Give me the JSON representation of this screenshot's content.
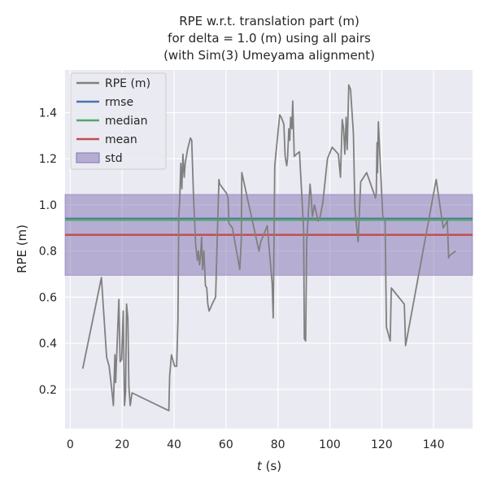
{
  "chart_data": {
    "type": "line",
    "title_lines": [
      "RPE w.r.t. translation part (m)",
      "for delta = 1.0 (m) using all pairs",
      "(with Sim(3) Umeyama alignment)"
    ],
    "xlabel_var": "t",
    "xlabel_unit": " (s)",
    "ylabel": "RPE (m)",
    "xlim": [
      -2,
      155
    ],
    "ylim": [
      0.03,
      1.585
    ],
    "xticks": [
      0,
      20,
      40,
      60,
      80,
      100,
      120,
      140
    ],
    "yticks": [
      0.2,
      0.4,
      0.6,
      0.8,
      1.0,
      1.2,
      1.4
    ],
    "ytick_labels": [
      "0.2",
      "0.4",
      "0.6",
      "0.8",
      "1.0",
      "1.2",
      "1.4"
    ],
    "grid": true,
    "legend_position": "top-left",
    "series": [
      {
        "name": "RPE (m)",
        "color": "#808080",
        "x": [
          4.8,
          12,
          14,
          15,
          16,
          16.6,
          17.2,
          17.5,
          18.2,
          18.7,
          19.2,
          19.8,
          20.4,
          20.9,
          21.3,
          21.7,
          22.2,
          22.6,
          23.1,
          23.8,
          38,
          38.3,
          39,
          40.2,
          41,
          41.5,
          41.8,
          42.2,
          42.6,
          43,
          43.4,
          43.9,
          44.3,
          45.2,
          46.3,
          46.8,
          47.5,
          48.3,
          49,
          49.4,
          49.8,
          50.2,
          50.6,
          51,
          51.5,
          52.1,
          52.6,
          53,
          53.5,
          55.1,
          56,
          56.7,
          57.3,
          57.6,
          60.2,
          60.8,
          61.1,
          62.5,
          65.3,
          65.9,
          66.1,
          72.7,
          73.4,
          75.9,
          77.8,
          78.2,
          78.8,
          80.7,
          81.3,
          82.3,
          82.8,
          83.4,
          83.7,
          84.2,
          84.6,
          84.9,
          85.4,
          85.7,
          86.3,
          87.2,
          88.3,
          89.5,
          89.9,
          90.2,
          90.7,
          91.1,
          92.4,
          92.8,
          93.3,
          94.1,
          95.5,
          96.3,
          97.3,
          99.1,
          100.9,
          103.3,
          104.1,
          104.8,
          105.3,
          105.8,
          106.3,
          106.7,
          107.3,
          108,
          109.1,
          109.7,
          110.9,
          111.9,
          114.2,
          117.6,
          117.9,
          118.2,
          118.4,
          118.7,
          120.4,
          121.3,
          121.8,
          123.3,
          123.7,
          128.7,
          129.2,
          141,
          143.7,
          145.3,
          145.8,
          146.1,
          148.5
        ],
        "y": [
          0.29,
          0.685,
          0.34,
          0.3,
          0.2,
          0.13,
          0.35,
          0.23,
          0.44,
          0.59,
          0.32,
          0.33,
          0.54,
          0.13,
          0.19,
          0.57,
          0.51,
          0.21,
          0.13,
          0.185,
          0.108,
          0.26,
          0.35,
          0.3,
          0.3,
          0.5,
          0.95,
          1.02,
          1.18,
          1.07,
          1.22,
          1.12,
          1.18,
          1.24,
          1.29,
          1.28,
          1.03,
          0.83,
          0.76,
          0.8,
          0.74,
          0.78,
          0.86,
          0.72,
          0.8,
          0.65,
          0.64,
          0.57,
          0.54,
          0.58,
          0.6,
          0.88,
          1.11,
          1.09,
          1.05,
          1.03,
          0.92,
          0.9,
          0.72,
          0.85,
          1.14,
          0.8,
          0.84,
          0.91,
          0.66,
          0.51,
          1.17,
          1.39,
          1.38,
          1.35,
          1.21,
          1.17,
          1.2,
          1.33,
          1.28,
          1.38,
          1.33,
          1.45,
          1.21,
          1.22,
          1.23,
          0.98,
          0.89,
          0.42,
          0.41,
          0.84,
          1.09,
          1.04,
          0.95,
          1,
          0.93,
          0.95,
          1.01,
          1.2,
          1.25,
          1.22,
          1.12,
          1.37,
          1.33,
          1.22,
          1.38,
          1.24,
          1.52,
          1.5,
          1.31,
          0.98,
          0.84,
          1.1,
          1.14,
          1.03,
          1.05,
          1.27,
          1.14,
          1.36,
          0.95,
          0.93,
          0.47,
          0.41,
          0.64,
          0.57,
          0.39,
          1.11,
          0.9,
          0.93,
          0.77,
          0.78,
          0.8
        ]
      }
    ],
    "stats": [
      {
        "name": "rmse",
        "color": "#4c72b0",
        "value": 0.94
      },
      {
        "name": "median",
        "color": "#55a868",
        "value": 0.935
      },
      {
        "name": "mean",
        "color": "#c44e52",
        "value": 0.87
      }
    ],
    "std_band": {
      "name": "std",
      "color": "#8172b2",
      "lower": 0.695,
      "upper": 1.045
    },
    "colors": {
      "plot_background": "#eaeaf2",
      "grid": "#ffffff"
    }
  }
}
